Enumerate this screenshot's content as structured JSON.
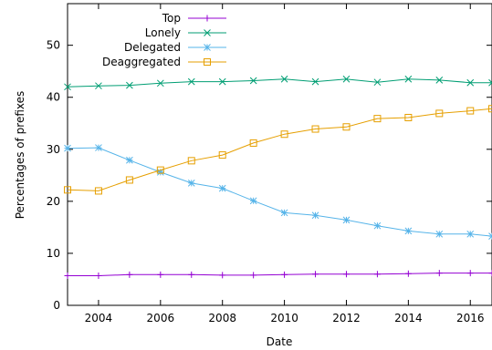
{
  "chart_data": {
    "type": "line",
    "xlabel": "Date",
    "ylabel": "Percentages of prefixes",
    "xlim": [
      2003,
      2016.7
    ],
    "ylim": [
      0,
      58
    ],
    "xticks": [
      2004,
      2006,
      2008,
      2010,
      2012,
      2014,
      2016
    ],
    "yticks": [
      0,
      10,
      20,
      30,
      40,
      50
    ],
    "grid": false,
    "legend_position": "top-left",
    "series": [
      {
        "name": "Top",
        "color": "#9400d3",
        "marker": "plus",
        "x": [
          2003,
          2004,
          2005,
          2006,
          2007,
          2008,
          2009,
          2010,
          2011,
          2012,
          2013,
          2014,
          2015,
          2016,
          2016.7
        ],
        "values": [
          5.7,
          5.7,
          5.9,
          5.9,
          5.9,
          5.8,
          5.8,
          5.9,
          6.0,
          6.0,
          6.0,
          6.1,
          6.2,
          6.2,
          6.2
        ]
      },
      {
        "name": "Lonely",
        "color": "#009e73",
        "marker": "x",
        "x": [
          2003,
          2004,
          2005,
          2006,
          2007,
          2008,
          2009,
          2010,
          2011,
          2012,
          2013,
          2014,
          2015,
          2016,
          2016.7
        ],
        "values": [
          42.0,
          42.2,
          42.3,
          42.7,
          43.0,
          43.0,
          43.2,
          43.5,
          43.0,
          43.5,
          42.9,
          43.5,
          43.3,
          42.8,
          42.8
        ]
      },
      {
        "name": "Delegated",
        "color": "#56b4e9",
        "marker": "star",
        "x": [
          2003,
          2004,
          2005,
          2006,
          2007,
          2008,
          2009,
          2010,
          2011,
          2012,
          2013,
          2014,
          2015,
          2016,
          2016.7
        ],
        "values": [
          30.2,
          30.3,
          27.9,
          25.6,
          23.5,
          22.5,
          20.1,
          17.8,
          17.3,
          16.4,
          15.3,
          14.3,
          13.7,
          13.7,
          13.3
        ]
      },
      {
        "name": "Deaggregated",
        "color": "#e69f00",
        "marker": "square",
        "x": [
          2003,
          2004,
          2005,
          2006,
          2007,
          2008,
          2009,
          2010,
          2011,
          2012,
          2013,
          2014,
          2015,
          2016,
          2016.7
        ],
        "values": [
          22.2,
          22.0,
          24.1,
          26.0,
          27.8,
          28.9,
          31.2,
          32.9,
          33.9,
          34.3,
          35.9,
          36.1,
          36.9,
          37.4,
          37.8
        ]
      }
    ]
  }
}
